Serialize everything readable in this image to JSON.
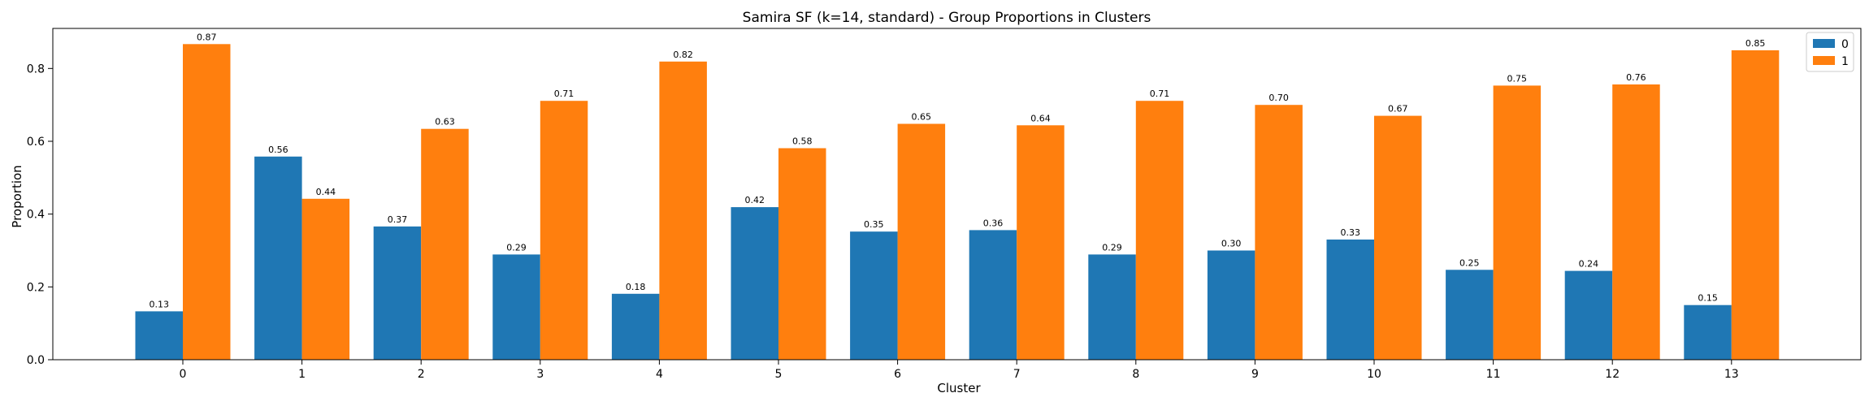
{
  "chart_data": {
    "type": "bar",
    "title": "Samira SF (k=14, standard) - Group Proportions in Clusters",
    "xlabel": "Cluster",
    "ylabel": "Proportion",
    "categories": [
      "0",
      "1",
      "2",
      "3",
      "4",
      "5",
      "6",
      "7",
      "8",
      "9",
      "10",
      "11",
      "12",
      "13"
    ],
    "series": [
      {
        "name": "0",
        "color": "#1f77b4",
        "values": [
          0.133,
          0.558,
          0.366,
          0.289,
          0.181,
          0.419,
          0.352,
          0.356,
          0.289,
          0.3,
          0.33,
          0.247,
          0.244,
          0.15
        ],
        "labels": [
          "0.13",
          "0.56",
          "0.37",
          "0.29",
          "0.18",
          "0.42",
          "0.35",
          "0.36",
          "0.29",
          "0.30",
          "0.33",
          "0.25",
          "0.24",
          "0.15"
        ]
      },
      {
        "name": "1",
        "color": "#ff7f0e",
        "values": [
          0.867,
          0.442,
          0.634,
          0.711,
          0.819,
          0.581,
          0.648,
          0.644,
          0.711,
          0.7,
          0.67,
          0.753,
          0.756,
          0.85
        ],
        "labels": [
          "0.87",
          "0.44",
          "0.63",
          "0.71",
          "0.82",
          "0.58",
          "0.65",
          "0.64",
          "0.71",
          "0.70",
          "0.67",
          "0.75",
          "0.76",
          "0.85"
        ]
      }
    ],
    "ylim": [
      0,
      0.91
    ],
    "yticks": [
      "0.0",
      "0.2",
      "0.4",
      "0.6",
      "0.8"
    ],
    "legend": "top-right",
    "grid": false
  }
}
